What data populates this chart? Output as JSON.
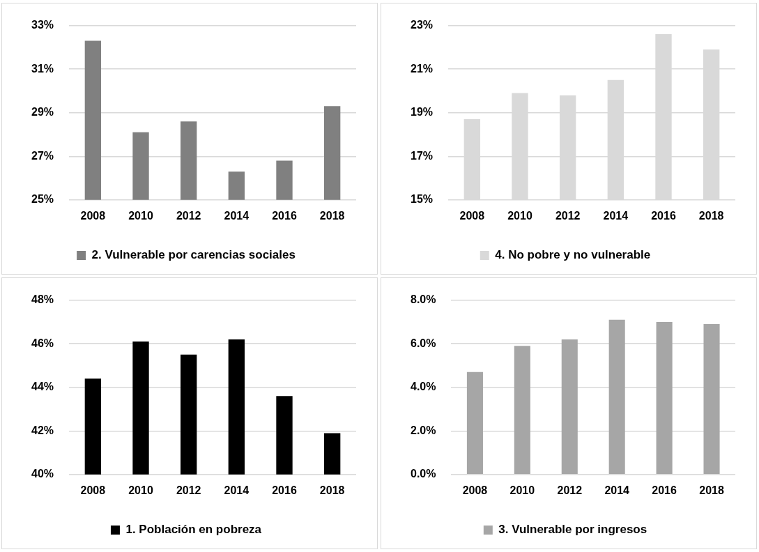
{
  "chart_data": [
    {
      "type": "bar",
      "categories": [
        "2008",
        "2010",
        "2012",
        "2014",
        "2016",
        "2018"
      ],
      "series": [
        {
          "name": "2. Vulnerable por carencias sociales",
          "color": "#808080",
          "values": [
            32.3,
            28.1,
            28.6,
            26.3,
            26.8,
            29.3
          ]
        }
      ],
      "ylim": [
        25,
        33
      ],
      "yticks": [
        {
          "value": 25,
          "label": "25%"
        },
        {
          "value": 27,
          "label": "27%"
        },
        {
          "value": 29,
          "label": "29%"
        },
        {
          "value": 31,
          "label": "31%"
        },
        {
          "value": 33,
          "label": "33%"
        }
      ],
      "grid": "y",
      "legend": "bottom"
    },
    {
      "type": "bar",
      "categories": [
        "2008",
        "2010",
        "2012",
        "2014",
        "2016",
        "2018"
      ],
      "series": [
        {
          "name": "4. No pobre y no vulnerable",
          "color": "#d9d9d9",
          "values": [
            18.7,
            19.9,
            19.8,
            20.5,
            22.6,
            21.9
          ]
        }
      ],
      "ylim": [
        15,
        23
      ],
      "yticks": [
        {
          "value": 15,
          "label": "15%"
        },
        {
          "value": 17,
          "label": "17%"
        },
        {
          "value": 19,
          "label": "19%"
        },
        {
          "value": 21,
          "label": "21%"
        },
        {
          "value": 23,
          "label": "23%"
        }
      ],
      "grid": "y",
      "legend": "bottom"
    },
    {
      "type": "bar",
      "categories": [
        "2008",
        "2010",
        "2012",
        "2014",
        "2016",
        "2018"
      ],
      "series": [
        {
          "name": "1. Población en pobreza",
          "color": "#000000",
          "values": [
            44.4,
            46.1,
            45.5,
            46.2,
            43.6,
            41.9
          ]
        }
      ],
      "ylim": [
        40,
        48
      ],
      "yticks": [
        {
          "value": 40,
          "label": "40%"
        },
        {
          "value": 42,
          "label": "42%"
        },
        {
          "value": 44,
          "label": "44%"
        },
        {
          "value": 46,
          "label": "46%"
        },
        {
          "value": 48,
          "label": "48%"
        }
      ],
      "grid": "y",
      "legend": "bottom"
    },
    {
      "type": "bar",
      "categories": [
        "2008",
        "2010",
        "2012",
        "2014",
        "2016",
        "2018"
      ],
      "series": [
        {
          "name": "3. Vulnerable por ingresos",
          "color": "#a6a6a6",
          "values": [
            4.7,
            5.9,
            6.2,
            7.1,
            7.0,
            6.9
          ]
        }
      ],
      "ylim": [
        0,
        8
      ],
      "yticks": [
        {
          "value": 0,
          "label": "0.0%"
        },
        {
          "value": 2,
          "label": "2.0%"
        },
        {
          "value": 4,
          "label": "4.0%"
        },
        {
          "value": 6,
          "label": "6.0%"
        },
        {
          "value": 8,
          "label": "8.0%"
        }
      ],
      "grid": "y",
      "legend": "bottom"
    }
  ]
}
